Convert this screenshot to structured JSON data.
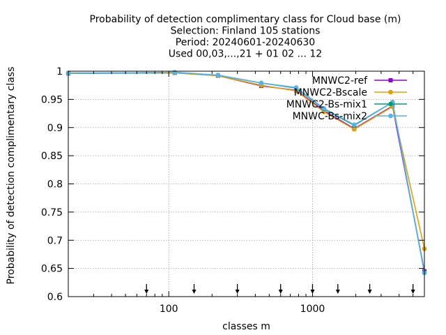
{
  "chart_data": {
    "type": "line",
    "title_lines": [
      "Probability of detection complimentary class  for Cloud base (m)",
      "Selection: Finland    105 stations",
      "Period: 20240601-20240630",
      "Used 00,03,...,21 + 01 02 ... 12"
    ],
    "xlabel": "classes m",
    "ylabel": "Probability of detection complimentary class",
    "x_scale": "log",
    "xlim": [
      20,
      6000
    ],
    "ylim": [
      0.6,
      1.0
    ],
    "x_ticks": [
      100,
      1000
    ],
    "x_tick_labels": [
      "100",
      "1000"
    ],
    "y_ticks": [
      0.6,
      0.65,
      0.7,
      0.75,
      0.8,
      0.85,
      0.9,
      0.95,
      1.0
    ],
    "y_tick_labels": [
      "0.6",
      "0.65",
      "0.7",
      "0.75",
      "0.8",
      "0.85",
      "0.9",
      "0.95",
      "1"
    ],
    "grid": true,
    "legend_position": "top-right",
    "arrow_markers_x": [
      70,
      150,
      300,
      600,
      1000,
      1500,
      2500,
      5000
    ],
    "x": [
      20,
      110,
      220,
      440,
      770,
      1200,
      1950,
      3600,
      6000
    ],
    "series": [
      {
        "name": "MNWC2-ref",
        "color": "#9400d3",
        "marker": "square",
        "values": [
          0.996,
          0.997,
          0.992,
          0.974,
          0.966,
          0.93,
          0.898,
          0.938,
          0.645
        ]
      },
      {
        "name": "MNWC2-Bscale",
        "color": "#e69f00",
        "marker": "circle",
        "values": [
          0.997,
          0.997,
          0.992,
          0.975,
          0.965,
          0.928,
          0.897,
          0.937,
          0.685
        ]
      },
      {
        "name": "MNWC2-Bs-mix1",
        "color": "#009e73",
        "marker": "circle",
        "values": [
          0.996,
          0.998,
          0.993,
          0.979,
          0.97,
          0.933,
          0.904,
          0.945,
          0.643
        ]
      },
      {
        "name": "MNWC-Bs-mix2",
        "color": "#56b4e9",
        "marker": "circle",
        "values": [
          0.996,
          0.998,
          0.993,
          0.979,
          0.971,
          0.934,
          0.905,
          0.945,
          0.642
        ]
      }
    ]
  }
}
